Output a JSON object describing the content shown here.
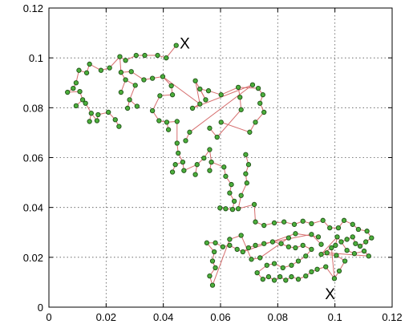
{
  "chart_data": {
    "type": "scatter",
    "title": "",
    "xlabel": "",
    "ylabel": "",
    "xlim": [
      0,
      0.12
    ],
    "ylim": [
      0,
      0.12
    ],
    "x_ticks": [
      "0",
      "0.02",
      "0.04",
      "0.06",
      "0.08",
      "0.1",
      "0.12"
    ],
    "y_ticks": [
      "0",
      "0.02",
      "0.04",
      "0.06",
      "0.08",
      "0.1",
      "0.12"
    ],
    "x_tick_values": [
      0,
      0.02,
      0.04,
      0.06,
      0.08,
      0.1,
      0.12
    ],
    "y_tick_values": [
      0,
      0.02,
      0.04,
      0.06,
      0.08,
      0.1,
      0.12
    ],
    "grid": true,
    "colors": {
      "node": "#4caf3c",
      "node_stroke": "#1f5016",
      "edge": "#d66e6e"
    },
    "markers": [
      {
        "label": "X",
        "x": 0.0475,
        "y": 0.106
      },
      {
        "label": "X",
        "x": 0.0983,
        "y": 0.0055
      }
    ],
    "nodes": [
      [
        0.0445,
        0.105
      ],
      [
        0.041,
        0.1
      ],
      [
        0.038,
        0.101
      ],
      [
        0.0335,
        0.101
      ],
      [
        0.0305,
        0.101
      ],
      [
        0.0268,
        0.099
      ],
      [
        0.0248,
        0.1005
      ],
      [
        0.0212,
        0.096
      ],
      [
        0.0182,
        0.095
      ],
      [
        0.0142,
        0.0975
      ],
      [
        0.0132,
        0.094
      ],
      [
        0.0105,
        0.095
      ],
      [
        0.0095,
        0.09
      ],
      [
        0.0085,
        0.0878
      ],
      [
        0.0065,
        0.0862
      ],
      [
        0.0108,
        0.0865
      ],
      [
        0.0118,
        0.0832
      ],
      [
        0.0095,
        0.0808
      ],
      [
        0.0128,
        0.0818
      ],
      [
        0.0148,
        0.0778
      ],
      [
        0.0142,
        0.0745
      ],
      [
        0.0168,
        0.0748
      ],
      [
        0.0172,
        0.0772
      ],
      [
        0.0208,
        0.0782
      ],
      [
        0.0232,
        0.0752
      ],
      [
        0.0245,
        0.0725
      ],
      [
        0.0252,
        0.0942
      ],
      [
        0.0268,
        0.0912
      ],
      [
        0.0288,
        0.0945
      ],
      [
        0.0302,
        0.089
      ],
      [
        0.0282,
        0.0832
      ],
      [
        0.0308,
        0.0806
      ],
      [
        0.0275,
        0.0798
      ],
      [
        0.0252,
        0.0862
      ],
      [
        0.0332,
        0.0912
      ],
      [
        0.0362,
        0.0918
      ],
      [
        0.0398,
        0.0925
      ],
      [
        0.0428,
        0.0888
      ],
      [
        0.0432,
        0.0852
      ],
      [
        0.0388,
        0.0848
      ],
      [
        0.0362,
        0.0788
      ],
      [
        0.0385,
        0.0748
      ],
      [
        0.0412,
        0.0742
      ],
      [
        0.0418,
        0.0712
      ],
      [
        0.0448,
        0.0745
      ],
      [
        0.0448,
        0.0658
      ],
      [
        0.0452,
        0.0618
      ],
      [
        0.0468,
        0.0582
      ],
      [
        0.0442,
        0.0572
      ],
      [
        0.0432,
        0.0542
      ],
      [
        0.0472,
        0.0548
      ],
      [
        0.0518,
        0.0572
      ],
      [
        0.0512,
        0.0532
      ],
      [
        0.0542,
        0.0598
      ],
      [
        0.0562,
        0.0632
      ],
      [
        0.0568,
        0.0582
      ],
      [
        0.0562,
        0.0548
      ],
      [
        0.0612,
        0.0562
      ],
      [
        0.0618,
        0.0525
      ],
      [
        0.0638,
        0.0492
      ],
      [
        0.0632,
        0.0458
      ],
      [
        0.0648,
        0.0425
      ],
      [
        0.0642,
        0.0392
      ],
      [
        0.0618,
        0.0395
      ],
      [
        0.0598,
        0.0398
      ],
      [
        0.0662,
        0.0395
      ],
      [
        0.0672,
        0.0448
      ],
      [
        0.0692,
        0.0498
      ],
      [
        0.0688,
        0.0535
      ],
      [
        0.0698,
        0.0572
      ],
      [
        0.0688,
        0.0612
      ],
      [
        0.0718,
        0.0412
      ],
      [
        0.0672,
        0.0792
      ],
      [
        0.0668,
        0.0842
      ],
      [
        0.0662,
        0.0882
      ],
      [
        0.0602,
        0.0852
      ],
      [
        0.0558,
        0.0868
      ],
      [
        0.0528,
        0.0875
      ],
      [
        0.0548,
        0.0832
      ],
      [
        0.0512,
        0.0908
      ],
      [
        0.0528,
        0.0815
      ],
      [
        0.0502,
        0.0798
      ],
      [
        0.0712,
        0.0892
      ],
      [
        0.0732,
        0.0878
      ],
      [
        0.0748,
        0.0852
      ],
      [
        0.0738,
        0.0818
      ],
      [
        0.0752,
        0.0782
      ],
      [
        0.0722,
        0.0742
      ],
      [
        0.0702,
        0.0702
      ],
      [
        0.0602,
        0.0742
      ],
      [
        0.0562,
        0.0718
      ],
      [
        0.0588,
        0.0682
      ],
      [
        0.0492,
        0.0702
      ],
      [
        0.0478,
        0.0668
      ],
      [
        0.0722,
        0.0342
      ],
      [
        0.0752,
        0.0328
      ],
      [
        0.0788,
        0.0338
      ],
      [
        0.0822,
        0.0342
      ],
      [
        0.0858,
        0.0332
      ],
      [
        0.0888,
        0.0345
      ],
      [
        0.0918,
        0.0335
      ],
      [
        0.0958,
        0.0348
      ],
      [
        0.0982,
        0.0318
      ],
      [
        0.1012,
        0.0318
      ],
      [
        0.1032,
        0.0348
      ],
      [
        0.1062,
        0.0332
      ],
      [
        0.1082,
        0.0312
      ],
      [
        0.1112,
        0.0305
      ],
      [
        0.1128,
        0.0278
      ],
      [
        0.1108,
        0.0262
      ],
      [
        0.1088,
        0.0245
      ],
      [
        0.1072,
        0.0255
      ],
      [
        0.1062,
        0.0282
      ],
      [
        0.1042,
        0.0272
      ],
      [
        0.1022,
        0.0262
      ],
      [
        0.1008,
        0.0282
      ],
      [
        0.1002,
        0.0248
      ],
      [
        0.1042,
        0.0228
      ],
      [
        0.1068,
        0.0215
      ],
      [
        0.1102,
        0.0225
      ],
      [
        0.1118,
        0.0205
      ],
      [
        0.0972,
        0.0218
      ],
      [
        0.0952,
        0.0212
      ],
      [
        0.0988,
        0.0238
      ],
      [
        0.1005,
        0.0208
      ],
      [
        0.1035,
        0.0185
      ],
      [
        0.1015,
        0.0145
      ],
      [
        0.0998,
        0.0115
      ],
      [
        0.0968,
        0.0162
      ],
      [
        0.0938,
        0.0152
      ],
      [
        0.0918,
        0.0142
      ],
      [
        0.0898,
        0.0125
      ],
      [
        0.0872,
        0.0112
      ],
      [
        0.0848,
        0.0122
      ],
      [
        0.0828,
        0.0108
      ],
      [
        0.0808,
        0.0122
      ],
      [
        0.0788,
        0.0108
      ],
      [
        0.0768,
        0.0122
      ],
      [
        0.0748,
        0.0112
      ],
      [
        0.0728,
        0.0138
      ],
      [
        0.0762,
        0.0168
      ],
      [
        0.0788,
        0.0175
      ],
      [
        0.0818,
        0.0158
      ],
      [
        0.0848,
        0.0168
      ],
      [
        0.0872,
        0.0185
      ],
      [
        0.0898,
        0.0205
      ],
      [
        0.0918,
        0.0232
      ],
      [
        0.0888,
        0.0248
      ],
      [
        0.0862,
        0.0238
      ],
      [
        0.0838,
        0.0242
      ],
      [
        0.0812,
        0.0255
      ],
      [
        0.0782,
        0.0262
      ],
      [
        0.0752,
        0.0255
      ],
      [
        0.0722,
        0.0248
      ],
      [
        0.0698,
        0.0238
      ],
      [
        0.0678,
        0.0222
      ],
      [
        0.0658,
        0.0232
      ],
      [
        0.0632,
        0.0248
      ],
      [
        0.0608,
        0.0242
      ],
      [
        0.0582,
        0.0258
      ],
      [
        0.0552,
        0.0258
      ],
      [
        0.0578,
        0.0222
      ],
      [
        0.0572,
        0.0185
      ],
      [
        0.0582,
        0.0158
      ],
      [
        0.0562,
        0.0125
      ],
      [
        0.0572,
        0.0088
      ],
      [
        0.0632,
        0.0272
      ],
      [
        0.0672,
        0.0288
      ],
      [
        0.0708,
        0.0192
      ],
      [
        0.0738,
        0.0198
      ],
      [
        0.0838,
        0.0278
      ],
      [
        0.0862,
        0.0295
      ],
      [
        0.0942,
        0.0282
      ],
      [
        0.0918,
        0.0292
      ],
      [
        0.0952,
        0.0252
      ]
    ],
    "edges": [
      [
        0,
        1
      ],
      [
        1,
        2
      ],
      [
        2,
        3
      ],
      [
        3,
        4
      ],
      [
        4,
        5
      ],
      [
        5,
        6
      ],
      [
        6,
        7
      ],
      [
        7,
        8
      ],
      [
        8,
        9
      ],
      [
        9,
        10
      ],
      [
        10,
        11
      ],
      [
        11,
        12
      ],
      [
        12,
        13
      ],
      [
        13,
        14
      ],
      [
        14,
        15
      ],
      [
        15,
        16
      ],
      [
        16,
        17
      ],
      [
        16,
        18
      ],
      [
        18,
        19
      ],
      [
        19,
        20
      ],
      [
        19,
        21
      ],
      [
        21,
        22
      ],
      [
        22,
        23
      ],
      [
        23,
        24
      ],
      [
        24,
        25
      ],
      [
        6,
        26
      ],
      [
        26,
        27
      ],
      [
        26,
        28
      ],
      [
        27,
        29
      ],
      [
        29,
        30
      ],
      [
        30,
        31
      ],
      [
        30,
        32
      ],
      [
        27,
        33
      ],
      [
        28,
        34
      ],
      [
        34,
        35
      ],
      [
        35,
        36
      ],
      [
        36,
        37
      ],
      [
        37,
        38
      ],
      [
        38,
        39
      ],
      [
        39,
        40
      ],
      [
        40,
        41
      ],
      [
        41,
        42
      ],
      [
        42,
        43
      ],
      [
        42,
        44
      ],
      [
        44,
        45
      ],
      [
        45,
        46
      ],
      [
        46,
        47
      ],
      [
        47,
        48
      ],
      [
        48,
        49
      ],
      [
        47,
        50
      ],
      [
        50,
        51
      ],
      [
        51,
        52
      ],
      [
        51,
        53
      ],
      [
        53,
        54
      ],
      [
        54,
        55
      ],
      [
        55,
        56
      ],
      [
        55,
        57
      ],
      [
        57,
        58
      ],
      [
        58,
        59
      ],
      [
        59,
        60
      ],
      [
        60,
        61
      ],
      [
        61,
        62
      ],
      [
        62,
        63
      ],
      [
        63,
        64
      ],
      [
        62,
        65
      ],
      [
        65,
        66
      ],
      [
        66,
        67
      ],
      [
        67,
        68
      ],
      [
        68,
        69
      ],
      [
        69,
        70
      ],
      [
        65,
        71
      ],
      [
        36,
        80
      ],
      [
        80,
        79
      ],
      [
        79,
        78
      ],
      [
        78,
        77
      ],
      [
        77,
        76
      ],
      [
        76,
        75
      ],
      [
        75,
        74
      ],
      [
        74,
        73
      ],
      [
        73,
        72
      ],
      [
        72,
        91
      ],
      [
        74,
        83
      ],
      [
        83,
        84
      ],
      [
        84,
        85
      ],
      [
        85,
        86
      ],
      [
        86,
        87
      ],
      [
        87,
        88
      ],
      [
        88,
        89
      ],
      [
        80,
        81
      ],
      [
        81,
        82
      ],
      [
        82,
        92
      ],
      [
        92,
        93
      ],
      [
        91,
        90
      ],
      [
        71,
        94
      ],
      [
        94,
        95
      ],
      [
        95,
        96
      ],
      [
        96,
        97
      ],
      [
        97,
        98
      ],
      [
        98,
        99
      ],
      [
        99,
        100
      ],
      [
        100,
        101
      ],
      [
        101,
        102
      ],
      [
        102,
        103
      ],
      [
        103,
        104
      ],
      [
        104,
        105
      ],
      [
        105,
        106
      ],
      [
        106,
        107
      ],
      [
        107,
        108
      ],
      [
        108,
        109
      ],
      [
        109,
        110
      ],
      [
        110,
        111
      ],
      [
        111,
        112
      ],
      [
        112,
        113
      ],
      [
        113,
        114
      ],
      [
        114,
        115
      ],
      [
        115,
        116
      ],
      [
        114,
        117
      ],
      [
        117,
        118
      ],
      [
        118,
        119
      ],
      [
        119,
        120
      ],
      [
        120,
        121
      ],
      [
        115,
        122
      ],
      [
        122,
        123
      ],
      [
        122,
        124
      ],
      [
        124,
        125
      ],
      [
        125,
        126
      ],
      [
        126,
        127
      ],
      [
        127,
        128
      ],
      [
        128,
        129
      ],
      [
        129,
        130
      ],
      [
        130,
        131
      ],
      [
        131,
        132
      ],
      [
        132,
        133
      ],
      [
        133,
        134
      ],
      [
        134,
        135
      ],
      [
        135,
        136
      ],
      [
        136,
        137
      ],
      [
        137,
        138
      ],
      [
        138,
        139
      ],
      [
        139,
        140
      ],
      [
        140,
        141
      ],
      [
        141,
        142
      ],
      [
        142,
        143
      ],
      [
        143,
        144
      ],
      [
        144,
        145
      ],
      [
        145,
        146
      ],
      [
        146,
        147
      ],
      [
        147,
        148
      ],
      [
        148,
        149
      ],
      [
        149,
        150
      ],
      [
        150,
        151
      ],
      [
        151,
        152
      ],
      [
        152,
        153
      ],
      [
        153,
        154
      ],
      [
        154,
        155
      ],
      [
        155,
        156
      ],
      [
        156,
        157
      ],
      [
        157,
        158
      ],
      [
        158,
        159
      ],
      [
        159,
        160
      ],
      [
        160,
        161
      ],
      [
        161,
        162
      ],
      [
        162,
        163
      ],
      [
        163,
        164
      ],
      [
        164,
        165
      ],
      [
        165,
        166
      ],
      [
        166,
        167
      ],
      [
        167,
        168
      ],
      [
        168,
        169
      ],
      [
        169,
        170
      ],
      [
        155,
        171
      ],
      [
        171,
        172
      ],
      [
        152,
        173
      ],
      [
        173,
        174
      ],
      [
        147,
        175
      ],
      [
        175,
        176
      ],
      [
        142,
        178
      ],
      [
        178,
        177
      ],
      [
        177,
        179
      ],
      [
        123,
        127
      ]
    ]
  }
}
